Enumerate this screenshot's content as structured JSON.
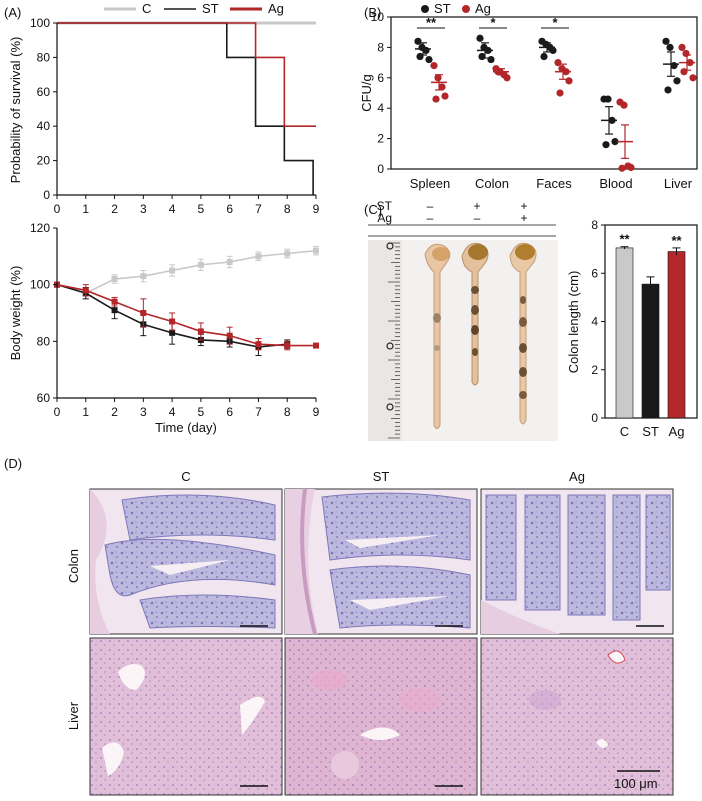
{
  "panels": {
    "a": "(A)",
    "b": "(B)",
    "c": "(C)",
    "d": "(D)"
  },
  "colors": {
    "C": "#c9c9c9",
    "ST": "#1a1a1a",
    "Ag": "#b3262a"
  },
  "chart_data": [
    {
      "id": "survival",
      "type": "line",
      "ylabel": "Probability of survival (%)",
      "xlabel": "",
      "xlim": [
        0,
        9
      ],
      "ylim": [
        0,
        100
      ],
      "xticks": [
        "0",
        "1",
        "2",
        "3",
        "4",
        "5",
        "6",
        "7",
        "8",
        "9"
      ],
      "yticks": [
        "0",
        "20",
        "40",
        "60",
        "80",
        "100"
      ],
      "legend": [
        "C",
        "ST",
        "Ag"
      ],
      "legend_position": "top",
      "series": [
        {
          "name": "C",
          "x": [
            0,
            9
          ],
          "y": [
            100,
            100
          ]
        },
        {
          "name": "ST",
          "x": [
            0,
            5.9,
            5.9,
            6.9,
            6.9,
            7.9,
            7.9,
            8.9,
            8.9
          ],
          "y": [
            100,
            100,
            80,
            80,
            40,
            40,
            20,
            20,
            0
          ]
        },
        {
          "name": "Ag",
          "x": [
            0,
            6.9,
            6.9,
            7.9,
            7.9,
            9
          ],
          "y": [
            100,
            100,
            80,
            80,
            40,
            40
          ]
        }
      ]
    },
    {
      "id": "bodyweight",
      "type": "line",
      "ylabel": "Body weight (%)",
      "xlabel": "Time (day)",
      "xlim": [
        0,
        9
      ],
      "ylim": [
        60,
        120
      ],
      "xticks": [
        "0",
        "1",
        "2",
        "3",
        "4",
        "5",
        "6",
        "7",
        "8",
        "9"
      ],
      "yticks": [
        "60",
        "80",
        "100",
        "120"
      ],
      "series": [
        {
          "name": "C",
          "x": [
            0,
            1,
            2,
            3,
            4,
            5,
            6,
            7,
            8,
            9
          ],
          "y": [
            100,
            97,
            102,
            103,
            105,
            107,
            108,
            110,
            111,
            112
          ],
          "err": [
            0.5,
            2,
            1.5,
            2,
            2,
            2,
            2,
            1.5,
            1.5,
            1.5
          ]
        },
        {
          "name": "ST",
          "x": [
            0,
            1,
            2,
            3,
            4,
            5,
            6,
            7,
            8
          ],
          "y": [
            100,
            97,
            91,
            86,
            83,
            80.5,
            80,
            78,
            79
          ],
          "err": [
            0.5,
            2,
            3,
            4,
            4,
            2,
            2,
            3,
            1.5
          ]
        },
        {
          "name": "Ag",
          "x": [
            0,
            1,
            2,
            3,
            4,
            5,
            6,
            7,
            8,
            9
          ],
          "y": [
            100,
            98,
            94,
            90,
            87,
            83.5,
            82,
            79,
            78.5,
            78.5
          ],
          "err": [
            0.5,
            2,
            1.5,
            5,
            3,
            3,
            3,
            2,
            1.5,
            0.5
          ]
        }
      ]
    },
    {
      "id": "cfu",
      "type": "scatter",
      "ylabel": "CFU/g",
      "ylim": [
        0,
        10
      ],
      "yticks": [
        "0",
        "2",
        "4",
        "6",
        "8",
        "10"
      ],
      "categories": [
        "Spleen",
        "Colon",
        "Faces",
        "Blood",
        "Liver"
      ],
      "legend": [
        "ST",
        "Ag"
      ],
      "legend_position": "top",
      "significance": [
        "**",
        "*",
        "*",
        "",
        ""
      ],
      "series": [
        {
          "name": "ST",
          "mean": [
            7.9,
            7.8,
            8.0,
            3.2,
            6.9
          ],
          "sem": [
            0.4,
            0.5,
            0.3,
            0.9,
            0.8
          ],
          "points": [
            [
              8.4,
              8.0,
              7.8,
              7.2,
              7.4
            ],
            [
              8.6,
              8.0,
              7.8,
              7.2,
              7.4
            ],
            [
              8.4,
              8.2,
              8.0,
              7.8,
              7.4
            ],
            [
              4.6,
              4.6,
              3.2,
              1.8,
              1.6
            ],
            [
              8.4,
              8.0,
              6.8,
              5.8,
              5.2
            ]
          ]
        },
        {
          "name": "Ag",
          "mean": [
            5.7,
            6.4,
            6.4,
            1.8,
            7.0
          ],
          "sem": [
            0.5,
            0.2,
            0.5,
            1.1,
            0.5
          ],
          "points": [
            [
              6.8,
              6.0,
              5.4,
              4.8,
              4.6
            ],
            [
              6.6,
              6.4,
              6.2,
              6.0,
              6.4
            ],
            [
              7.0,
              6.6,
              6.4,
              5.8,
              5.0
            ],
            [
              4.4,
              4.2,
              0.2,
              0.1,
              0.05
            ],
            [
              8.0,
              7.6,
              7.0,
              6.0,
              6.4
            ]
          ]
        }
      ]
    },
    {
      "id": "colon_length",
      "type": "bar",
      "ylabel": "Colon length (cm)",
      "ylim": [
        0,
        8
      ],
      "yticks": [
        "0",
        "2",
        "4",
        "6",
        "8"
      ],
      "categories": [
        "C",
        "ST",
        "Ag"
      ],
      "values": [
        7.05,
        5.55,
        6.9
      ],
      "sem": [
        0.05,
        0.3,
        0.15
      ],
      "significance": [
        "**",
        "",
        "**"
      ]
    }
  ],
  "panel_c": {
    "rows": [
      {
        "label": "ST",
        "marks": [
          "–",
          "+",
          "+"
        ]
      },
      {
        "label": "Ag",
        "marks": [
          "–",
          "–",
          "+"
        ]
      }
    ]
  },
  "panel_d": {
    "columns": [
      "C",
      "ST",
      "Ag"
    ],
    "rows": [
      "Colon",
      "Liver"
    ],
    "scale_bar": "100 μm"
  }
}
